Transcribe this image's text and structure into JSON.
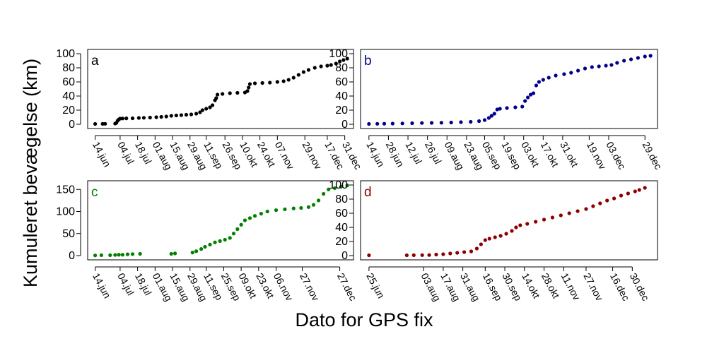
{
  "figure": {
    "ylabel": "Kumuleret bevægelse (km)",
    "xlabel": "Dato for GPS fix"
  },
  "chart_data": [
    {
      "type": "scatter",
      "panel": "a",
      "color": "#000000",
      "xlabel": "",
      "ylabel": "",
      "xlim": [
        "2015-06-08",
        "2016-01-07"
      ],
      "ylim": [
        0,
        100
      ],
      "yticks": [
        0,
        20,
        40,
        60,
        80,
        100
      ],
      "xtick_dates": [
        "2015-06-14",
        "2015-07-04",
        "2015-07-18",
        "2015-08-01",
        "2015-08-15",
        "2015-08-29",
        "2015-09-11",
        "2015-09-26",
        "2015-10-10",
        "2015-10-24",
        "2015-11-07",
        "2015-11-29",
        "2015-12-17",
        "2015-12-31"
      ],
      "xtick_labels": [
        "14.jun",
        "04.jul",
        "18.jul",
        "01.aug",
        "15.aug",
        "29.aug",
        "11.sep",
        "26.sep",
        "10.okt",
        "24.okt",
        "07.nov",
        "29.nov",
        "17.dec",
        "31.dec"
      ],
      "points": [
        [
          "2015-06-14",
          0.5
        ],
        [
          "2015-06-20",
          0.6
        ],
        [
          "2015-06-22",
          0.7
        ],
        [
          "2015-06-30",
          1
        ],
        [
          "2015-07-01",
          2
        ],
        [
          "2015-07-02",
          5
        ],
        [
          "2015-07-03",
          7
        ],
        [
          "2015-07-04",
          8
        ],
        [
          "2015-07-06",
          8.2
        ],
        [
          "2015-07-09",
          8.4
        ],
        [
          "2015-07-14",
          8.5
        ],
        [
          "2015-07-19",
          9
        ],
        [
          "2015-07-23",
          9.2
        ],
        [
          "2015-07-28",
          9.5
        ],
        [
          "2015-08-02",
          10
        ],
        [
          "2015-08-06",
          10.5
        ],
        [
          "2015-08-10",
          11
        ],
        [
          "2015-08-14",
          12
        ],
        [
          "2015-08-18",
          12.5
        ],
        [
          "2015-08-22",
          13
        ],
        [
          "2015-08-26",
          13.5
        ],
        [
          "2015-08-30",
          14
        ],
        [
          "2015-09-03",
          15
        ],
        [
          "2015-09-06",
          17
        ],
        [
          "2015-09-08",
          20
        ],
        [
          "2015-09-11",
          22
        ],
        [
          "2015-09-14",
          24
        ],
        [
          "2015-09-16",
          27
        ],
        [
          "2015-09-18",
          34
        ],
        [
          "2015-09-19",
          37
        ],
        [
          "2015-09-20",
          42
        ],
        [
          "2015-09-24",
          43
        ],
        [
          "2015-09-30",
          44
        ],
        [
          "2015-10-06",
          44.5
        ],
        [
          "2015-10-12",
          45
        ],
        [
          "2015-10-14",
          47
        ],
        [
          "2015-10-15",
          52
        ],
        [
          "2015-10-16",
          57
        ],
        [
          "2015-10-20",
          58
        ],
        [
          "2015-10-26",
          58.5
        ],
        [
          "2015-11-01",
          59
        ],
        [
          "2015-11-07",
          60
        ],
        [
          "2015-11-12",
          61
        ],
        [
          "2015-11-16",
          63
        ],
        [
          "2015-11-20",
          66
        ],
        [
          "2015-11-24",
          70
        ],
        [
          "2015-11-28",
          74
        ],
        [
          "2015-12-02",
          77
        ],
        [
          "2015-12-07",
          80
        ],
        [
          "2015-12-12",
          82
        ],
        [
          "2015-12-17",
          83
        ],
        [
          "2015-12-20",
          84
        ],
        [
          "2015-12-24",
          86
        ],
        [
          "2015-12-27",
          89
        ],
        [
          "2015-12-30",
          91
        ],
        [
          "2016-01-02",
          93
        ]
      ]
    },
    {
      "type": "scatter",
      "panel": "b",
      "color": "#00008B",
      "xlabel": "",
      "ylabel": "",
      "xlim": [
        "2015-06-08",
        "2016-01-07"
      ],
      "ylim": [
        0,
        100
      ],
      "yticks": [
        0,
        20,
        40,
        60,
        80,
        100
      ],
      "xtick_dates": [
        "2015-06-14",
        "2015-06-28",
        "2015-07-12",
        "2015-07-26",
        "2015-08-09",
        "2015-08-23",
        "2015-09-05",
        "2015-09-19",
        "2015-10-03",
        "2015-10-17",
        "2015-10-31",
        "2015-11-19",
        "2015-12-03",
        "2015-12-29"
      ],
      "xtick_labels": [
        "14.jun",
        "28.jun",
        "12.jul",
        "26.jul",
        "09.aug",
        "23.aug",
        "05.sep",
        "19.sep",
        "03.okt",
        "17.okt",
        "31.okt",
        "19.nov",
        "03.dec",
        "29.dec"
      ],
      "points": [
        [
          "2015-06-14",
          0.5
        ],
        [
          "2015-06-20",
          0.7
        ],
        [
          "2015-06-25",
          0.8
        ],
        [
          "2015-07-01",
          1
        ],
        [
          "2015-07-08",
          1.2
        ],
        [
          "2015-07-15",
          1.5
        ],
        [
          "2015-07-22",
          1.8
        ],
        [
          "2015-07-29",
          2
        ],
        [
          "2015-08-05",
          2.2
        ],
        [
          "2015-08-12",
          2.5
        ],
        [
          "2015-08-19",
          3
        ],
        [
          "2015-08-26",
          3.5
        ],
        [
          "2015-09-01",
          4.5
        ],
        [
          "2015-09-05",
          6
        ],
        [
          "2015-09-08",
          9
        ],
        [
          "2015-09-10",
          12
        ],
        [
          "2015-09-12",
          15
        ],
        [
          "2015-09-14",
          21
        ],
        [
          "2015-09-16",
          22
        ],
        [
          "2015-09-21",
          23
        ],
        [
          "2015-09-27",
          24
        ],
        [
          "2015-10-02",
          25
        ],
        [
          "2015-10-04",
          33
        ],
        [
          "2015-10-06",
          38
        ],
        [
          "2015-10-08",
          42
        ],
        [
          "2015-10-10",
          44
        ],
        [
          "2015-10-12",
          55
        ],
        [
          "2015-10-14",
          60
        ],
        [
          "2015-10-17",
          63
        ],
        [
          "2015-10-21",
          66
        ],
        [
          "2015-10-26",
          69
        ],
        [
          "2015-11-01",
          71
        ],
        [
          "2015-11-06",
          73
        ],
        [
          "2015-11-11",
          76
        ],
        [
          "2015-11-16",
          79
        ],
        [
          "2015-11-21",
          81
        ],
        [
          "2015-11-26",
          82
        ],
        [
          "2015-12-01",
          83
        ],
        [
          "2015-12-05",
          84
        ],
        [
          "2015-12-09",
          87
        ],
        [
          "2015-12-14",
          90
        ],
        [
          "2015-12-19",
          92
        ],
        [
          "2015-12-24",
          94
        ],
        [
          "2015-12-29",
          96
        ],
        [
          "2016-01-02",
          97
        ]
      ]
    },
    {
      "type": "scatter",
      "panel": "c",
      "color": "#008000",
      "xlabel": "",
      "ylabel": "",
      "xlim": [
        "2015-06-08",
        "2016-01-07"
      ],
      "ylim": [
        0,
        160
      ],
      "yticks": [
        0,
        50,
        100,
        150
      ],
      "xtick_dates": [
        "2015-06-14",
        "2015-07-04",
        "2015-07-18",
        "2015-08-01",
        "2015-08-15",
        "2015-08-29",
        "2015-09-11",
        "2015-09-25",
        "2015-10-09",
        "2015-10-23",
        "2015-11-06",
        "2015-11-27",
        "2015-12-27"
      ],
      "xtick_labels": [
        "14.jun",
        "04.jul",
        "18.jul",
        "01.aug",
        "15.aug",
        "29.aug",
        "11.sep",
        "25.sep",
        "09.okt",
        "23.okt",
        "06.nov",
        "27.nov",
        "27.dec"
      ],
      "points": [
        [
          "2015-06-14",
          0.5
        ],
        [
          "2015-06-19",
          1
        ],
        [
          "2015-06-26",
          1
        ],
        [
          "2015-06-30",
          1.5
        ],
        [
          "2015-07-03",
          2
        ],
        [
          "2015-07-06",
          2
        ],
        [
          "2015-07-10",
          3
        ],
        [
          "2015-07-14",
          3.5
        ],
        [
          "2015-07-20",
          4
        ],
        [
          "2015-08-14",
          4
        ],
        [
          "2015-08-17",
          5
        ],
        [
          "2015-08-31",
          7
        ],
        [
          "2015-09-03",
          10
        ],
        [
          "2015-09-07",
          15
        ],
        [
          "2015-09-10",
          20
        ],
        [
          "2015-09-14",
          25
        ],
        [
          "2015-09-18",
          30
        ],
        [
          "2015-09-22",
          33
        ],
        [
          "2015-09-26",
          36
        ],
        [
          "2015-09-30",
          40
        ],
        [
          "2015-10-03",
          50
        ],
        [
          "2015-10-06",
          60
        ],
        [
          "2015-10-09",
          70
        ],
        [
          "2015-10-12",
          80
        ],
        [
          "2015-10-16",
          85
        ],
        [
          "2015-10-20",
          90
        ],
        [
          "2015-10-25",
          95
        ],
        [
          "2015-10-30",
          100
        ],
        [
          "2015-11-06",
          103
        ],
        [
          "2015-11-13",
          105
        ],
        [
          "2015-11-20",
          107
        ],
        [
          "2015-11-26",
          108
        ],
        [
          "2015-12-02",
          110
        ],
        [
          "2015-12-06",
          115
        ],
        [
          "2015-12-10",
          125
        ],
        [
          "2015-12-14",
          140
        ],
        [
          "2015-12-18",
          150
        ],
        [
          "2015-12-23",
          153
        ],
        [
          "2015-12-28",
          156
        ],
        [
          "2016-01-02",
          159
        ]
      ]
    },
    {
      "type": "scatter",
      "panel": "d",
      "color": "#8B0000",
      "xlabel": "",
      "ylabel": "",
      "xlim": [
        "2015-06-19",
        "2016-01-17"
      ],
      "ylim": [
        0,
        100
      ],
      "yticks": [
        0,
        20,
        40,
        60,
        80,
        100
      ],
      "xtick_dates": [
        "2015-06-25",
        "2015-08-03",
        "2015-08-17",
        "2015-08-31",
        "2015-09-16",
        "2015-09-30",
        "2015-10-14",
        "2015-10-28",
        "2015-11-11",
        "2015-11-27",
        "2015-12-16",
        "2015-12-30"
      ],
      "xtick_labels": [
        "25.jun",
        "03.aug",
        "17.aug",
        "31.aug",
        "16.sep",
        "30.sep",
        "14.okt",
        "28.okt",
        "11.nov",
        "27.nov",
        "16.dec",
        "30.dec"
      ],
      "points": [
        [
          "2015-06-25",
          0.5
        ],
        [
          "2015-07-22",
          0.5
        ],
        [
          "2015-07-27",
          0.6
        ],
        [
          "2015-08-02",
          0.7
        ],
        [
          "2015-08-07",
          0.8
        ],
        [
          "2015-08-12",
          1.5
        ],
        [
          "2015-08-17",
          2
        ],
        [
          "2015-08-22",
          3
        ],
        [
          "2015-08-27",
          4
        ],
        [
          "2015-09-01",
          5
        ],
        [
          "2015-09-06",
          6
        ],
        [
          "2015-09-10",
          10
        ],
        [
          "2015-09-13",
          16
        ],
        [
          "2015-09-16",
          22
        ],
        [
          "2015-09-19",
          24
        ],
        [
          "2015-09-23",
          26
        ],
        [
          "2015-09-27",
          28
        ],
        [
          "2015-10-01",
          31
        ],
        [
          "2015-10-05",
          35
        ],
        [
          "2015-10-08",
          40
        ],
        [
          "2015-10-11",
          43
        ],
        [
          "2015-10-16",
          45
        ],
        [
          "2015-10-22",
          48
        ],
        [
          "2015-10-28",
          51
        ],
        [
          "2015-11-03",
          54
        ],
        [
          "2015-11-09",
          57
        ],
        [
          "2015-11-15",
          60
        ],
        [
          "2015-11-21",
          63
        ],
        [
          "2015-11-27",
          66
        ],
        [
          "2015-12-02",
          70
        ],
        [
          "2015-12-07",
          74
        ],
        [
          "2015-12-12",
          78
        ],
        [
          "2015-12-17",
          81
        ],
        [
          "2015-12-22",
          85
        ],
        [
          "2015-12-27",
          88
        ],
        [
          "2016-01-01",
          91
        ],
        [
          "2016-01-04",
          93
        ],
        [
          "2016-01-08",
          96
        ]
      ]
    }
  ]
}
